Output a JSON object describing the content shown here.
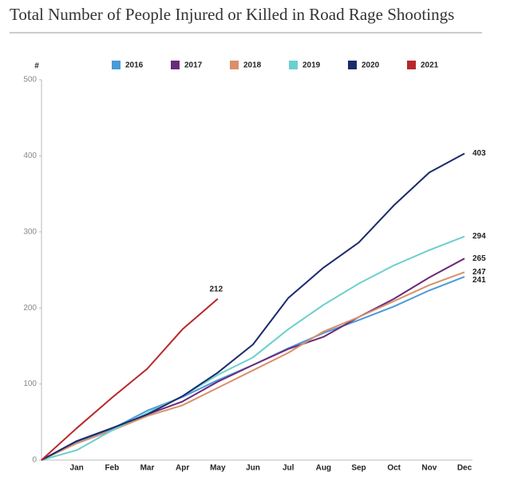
{
  "chart_data": {
    "type": "line",
    "title": "Total Number of People Injured or Killed in Road Rage Shootings",
    "y_label": "#",
    "categories": [
      null,
      "Jan",
      "Feb",
      "Mar",
      "Apr",
      "May",
      "Jun",
      "Jul",
      "Aug",
      "Sep",
      "Oct",
      "Nov",
      "Dec"
    ],
    "series": [
      {
        "name": "2016",
        "color": "#4a9ad8",
        "values": [
          0,
          23,
          41,
          65,
          83,
          105,
          125,
          147,
          167,
          184,
          202,
          223,
          241
        ]
      },
      {
        "name": "2017",
        "color": "#6b2a7a",
        "values": [
          0,
          25,
          42,
          60,
          77,
          103,
          125,
          146,
          162,
          188,
          212,
          240,
          265
        ]
      },
      {
        "name": "2018",
        "color": "#d9906a",
        "values": [
          0,
          22,
          39,
          58,
          72,
          95,
          118,
          141,
          169,
          188,
          209,
          230,
          247
        ]
      },
      {
        "name": "2019",
        "color": "#6ccfcf",
        "values": [
          0,
          13,
          39,
          62,
          84,
          112,
          135,
          172,
          204,
          232,
          256,
          276,
          294
        ]
      },
      {
        "name": "2020",
        "color": "#1b2a6b",
        "values": [
          0,
          25,
          42,
          60,
          84,
          115,
          152,
          213,
          253,
          286,
          335,
          378,
          403
        ]
      },
      {
        "name": "2021",
        "color": "#b8282a",
        "values": [
          0,
          42,
          82,
          120,
          172,
          212,
          null,
          null,
          null,
          null,
          null,
          null,
          null
        ]
      }
    ],
    "ylim": [
      0,
      500
    ],
    "yticks": [
      0,
      100,
      200,
      300,
      400,
      500
    ],
    "grid": false,
    "legend": "top"
  }
}
